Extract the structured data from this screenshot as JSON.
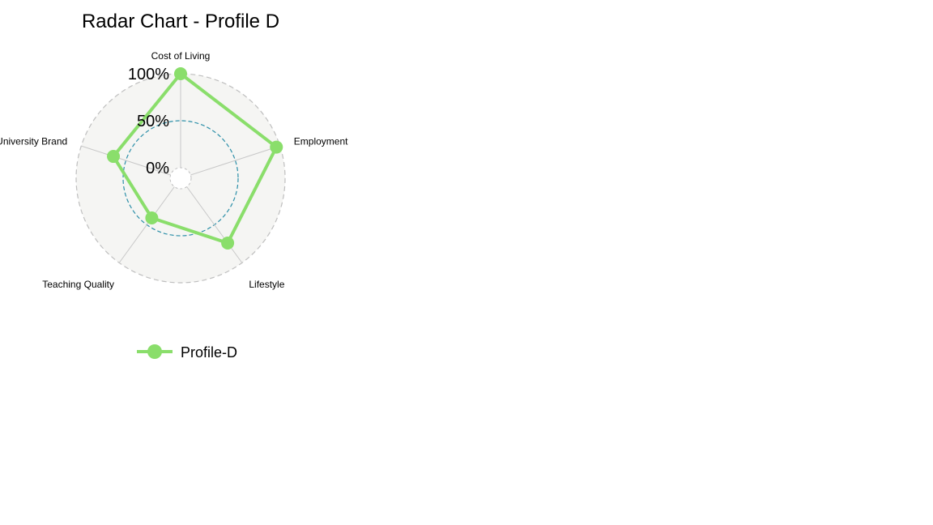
{
  "chart_data": {
    "type": "radar",
    "title": "Radar Chart - Profile D",
    "axes": [
      "Cost of Living",
      "Employment",
      "Lifestyle",
      "Teaching Quality",
      "University Brand"
    ],
    "grid_labels": [
      "0%",
      "50%",
      "100%"
    ],
    "range": [
      0,
      1
    ],
    "series": [
      {
        "name": "Profile-D",
        "values": [
          1.0,
          0.96,
          0.74,
          0.41,
          0.64
        ],
        "color": "#8ADE6B"
      }
    ],
    "legend_position": "bottom",
    "colors": {
      "background": "#F5F5F3",
      "outer_ring": "#BFBFBF",
      "mid_ring": "#2C8FA8",
      "spoke": "#C8C8C8"
    }
  }
}
